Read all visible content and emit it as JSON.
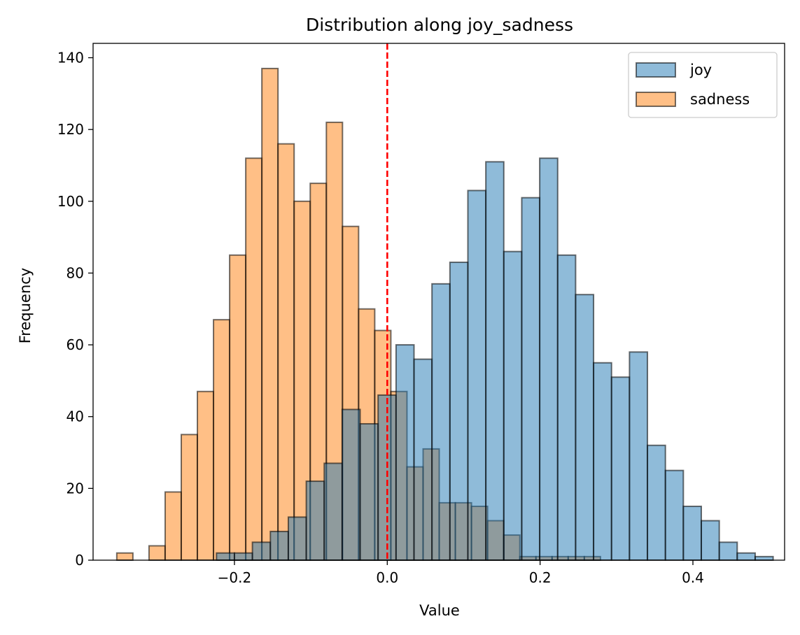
{
  "chart_data": {
    "type": "bar",
    "subtype": "histogram",
    "title": "Distribution along joy_sadness",
    "xlabel": "Value",
    "ylabel": "Frequency",
    "xlim": [
      -0.385,
      0.52
    ],
    "ylim": [
      0,
      144
    ],
    "xticks": [
      {
        "value": -0.2,
        "label": "−0.2"
      },
      {
        "value": 0.0,
        "label": "0.0"
      },
      {
        "value": 0.2,
        "label": "0.2"
      },
      {
        "value": 0.4,
        "label": "0.4"
      }
    ],
    "yticks": [
      {
        "value": 0,
        "label": "0"
      },
      {
        "value": 20,
        "label": "20"
      },
      {
        "value": 40,
        "label": "40"
      },
      {
        "value": 60,
        "label": "60"
      },
      {
        "value": 80,
        "label": "80"
      },
      {
        "value": 100,
        "label": "100"
      },
      {
        "value": 120,
        "label": "120"
      },
      {
        "value": 140,
        "label": "140"
      }
    ],
    "grid": false,
    "legend": "top-right",
    "vline": {
      "x": 0.0,
      "style": "dashed",
      "color": "#ff0000"
    },
    "series": [
      {
        "name": "joy",
        "color": "#1f77b4",
        "alpha": 0.5,
        "edgecolor": "#000000",
        "bin_start": -0.2235,
        "bin_width": 0.0235,
        "counts": [
          2,
          2,
          5,
          8,
          12,
          22,
          27,
          42,
          38,
          46,
          60,
          56,
          77,
          83,
          103,
          111,
          86,
          101,
          112,
          85,
          74,
          55,
          51,
          58,
          32,
          25,
          15,
          11,
          5,
          2,
          1
        ]
      },
      {
        "name": "sadness",
        "color": "#ff7f0e",
        "alpha": 0.5,
        "edgecolor": "#000000",
        "bin_start": -0.354,
        "bin_width": 0.0211,
        "counts": [
          2,
          0,
          4,
          19,
          35,
          47,
          67,
          85,
          112,
          137,
          116,
          100,
          105,
          122,
          93,
          70,
          64,
          47,
          26,
          31,
          16,
          16,
          15,
          11,
          7,
          1,
          1,
          1,
          1,
          1
        ]
      }
    ]
  }
}
